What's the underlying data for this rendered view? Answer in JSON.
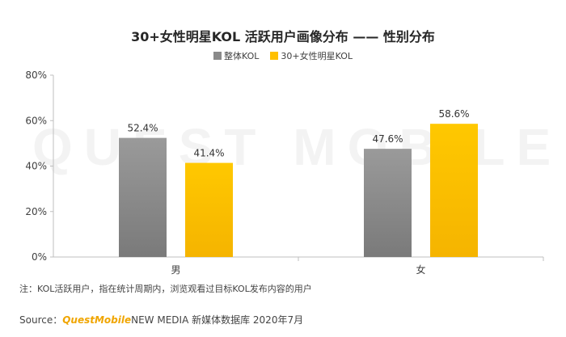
{
  "chart_data": {
    "type": "bar",
    "title": "30+女性明星KOL 活跃用户画像分布 —— 性别分布",
    "categories": [
      "男",
      "女"
    ],
    "series": [
      {
        "name": "整体KOL",
        "values": [
          52.4,
          47.6
        ],
        "color": "#8a8a8a"
      },
      {
        "name": "30+女性明星KOL",
        "values": [
          41.4,
          58.6
        ],
        "color": "#ffc000"
      }
    ],
    "value_labels": [
      [
        "52.4%",
        "47.6%"
      ],
      [
        "41.4%",
        "58.6%"
      ]
    ],
    "ylim": [
      0,
      80
    ],
    "yticks": [
      0,
      20,
      40,
      60,
      80
    ],
    "ytick_labels": [
      "0%",
      "20%",
      "40%",
      "60%",
      "80%"
    ],
    "legend_position": "top-center",
    "grid": false
  },
  "watermark": "QUEST MOBILE",
  "note": "注：KOL活跃用户，指在统计周期内，浏览观看过目标KOL发布内容的用户",
  "source": {
    "prefix": "Source：",
    "brand": "QuestMobile",
    "suffix": " NEW MEDIA 新媒体数据库 2020年7月"
  }
}
